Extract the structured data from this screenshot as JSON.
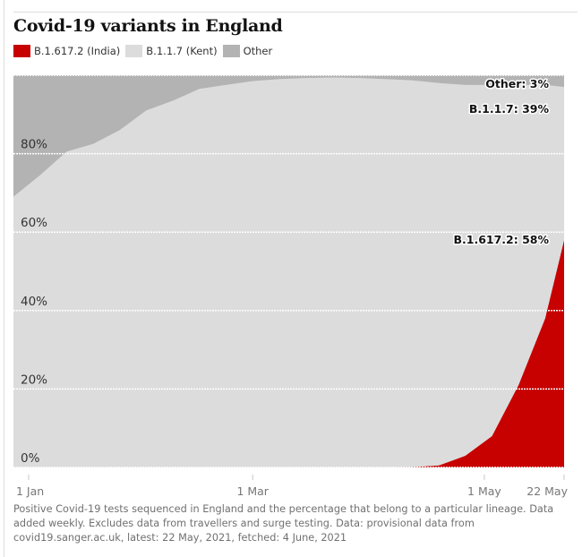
{
  "title": "Covid-19 variants in England",
  "legend": [
    {
      "label": "B.1.617.2 (India)",
      "color": "#c70000"
    },
    {
      "label": "B.1.1.7 (Kent)",
      "color": "#dcdcdc"
    },
    {
      "label": "Other",
      "color": "#b3b3b3"
    }
  ],
  "caption": "Positive Covid-19 tests sequenced in England and the percentage that belong to a particular lineage. Data added weekly. Excludes data from travellers and surge testing. Data: provisional data from covid19.sanger.ac.uk, latest: 22 May, 2021, fetched: 4 June, 2021",
  "chart_data": {
    "type": "area",
    "stacked": true,
    "title": "Covid-19 variants in England",
    "xlabel": "",
    "ylabel": "",
    "ylim": [
      0,
      100
    ],
    "yticks": [
      0,
      20,
      40,
      60,
      80,
      100
    ],
    "ytick_labels": [
      "0%",
      "20%",
      "40%",
      "60%",
      "80%"
    ],
    "xticks": [
      {
        "day": 0,
        "label": "1 Jan"
      },
      {
        "day": 59,
        "label": "1 Mar"
      },
      {
        "day": 120,
        "label": "1 May"
      },
      {
        "day": 141,
        "label": "22 May"
      }
    ],
    "x_days_since_1_jan": [
      -4,
      3,
      10,
      17,
      24,
      31,
      38,
      45,
      52,
      59,
      66,
      73,
      80,
      87,
      94,
      101,
      108,
      115,
      122,
      129,
      136,
      141
    ],
    "series": [
      {
        "name": "B.1.617.2 (India)",
        "color": "#c70000",
        "values": [
          0,
          0,
          0,
          0,
          0,
          0,
          0,
          0,
          0,
          0,
          0,
          0,
          0,
          0,
          0,
          0.1,
          0.5,
          3,
          8,
          21,
          38,
          58
        ]
      },
      {
        "name": "B.1.1.7 (Kent)",
        "color": "#dcdcdc",
        "values": [
          69,
          74.5,
          80.5,
          82.5,
          86,
          91,
          93.5,
          96.5,
          97.5,
          98.5,
          99,
          99.3,
          99.4,
          99.3,
          99,
          98.6,
          97.5,
          94.5,
          89.5,
          76.5,
          59.5,
          39
        ]
      },
      {
        "name": "Other",
        "color": "#b3b3b3",
        "values": [
          31,
          25.5,
          19.5,
          17.5,
          14,
          9,
          6.5,
          3.5,
          2.5,
          1.5,
          1,
          0.7,
          0.6,
          0.7,
          1,
          1.3,
          2,
          2.5,
          2.5,
          2.5,
          2.5,
          3
        ]
      }
    ],
    "annotations": [
      {
        "label": "Other: 3%",
        "series": "Other"
      },
      {
        "label": "B.1.1.7: 39%",
        "series": "B.1.1.7 (Kent)"
      },
      {
        "label": "B.1.617.2: 58%",
        "series": "B.1.617.2 (India)"
      }
    ],
    "grid": true,
    "legend_position": "top-left"
  }
}
